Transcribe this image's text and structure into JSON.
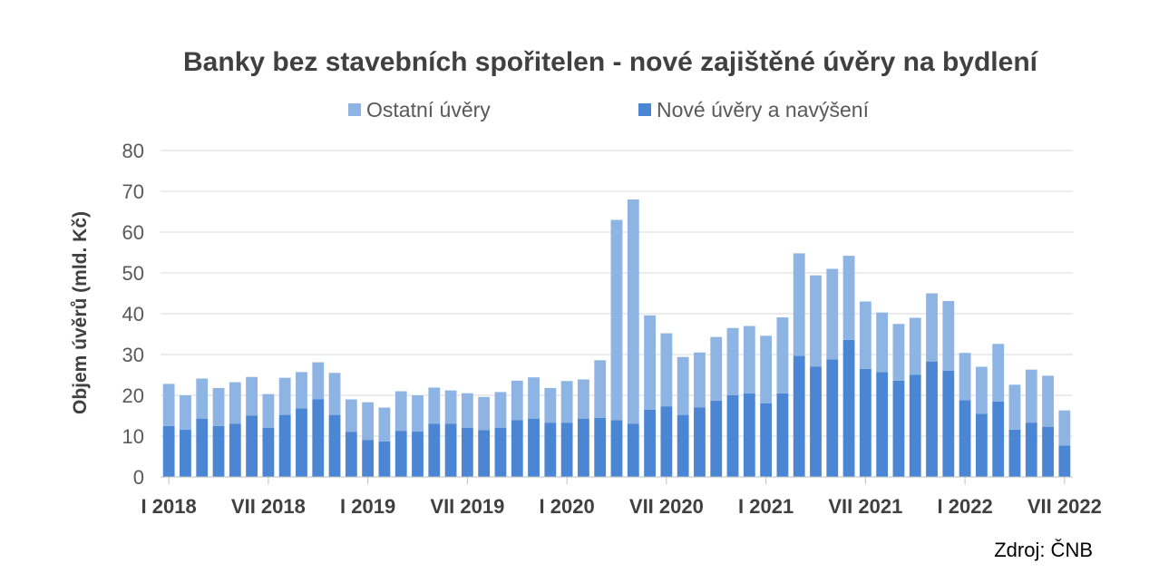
{
  "colors": {
    "ostatni": "#8eb4e3",
    "nove": "#4a86d3"
  },
  "source_label": "Zdroj: ČNB",
  "chart_data": {
    "type": "bar",
    "stacked": true,
    "title": "Banky bez stavebních spořitelen - nové zajištěné úvěry na bydlení",
    "ylabel": "Objem úvěrů (mld. Kč)",
    "xlabel": "",
    "ylim": [
      0,
      80
    ],
    "yticks": [
      0,
      10,
      20,
      30,
      40,
      50,
      60,
      70,
      80
    ],
    "grid": true,
    "legend_position": "top",
    "xtick_labels": [
      {
        "index": 0,
        "label": "I 2018"
      },
      {
        "index": 6,
        "label": "VII 2018"
      },
      {
        "index": 12,
        "label": "I 2019"
      },
      {
        "index": 18,
        "label": "VII 2019"
      },
      {
        "index": 24,
        "label": "I 2020"
      },
      {
        "index": 30,
        "label": "VII 2020"
      },
      {
        "index": 36,
        "label": "I 2021"
      },
      {
        "index": 42,
        "label": "VII 2021"
      },
      {
        "index": 48,
        "label": "I 2022"
      },
      {
        "index": 54,
        "label": "VII 2022"
      }
    ],
    "series": [
      {
        "name": "Nové úvěry a navýšení",
        "color_key": "nove",
        "values": [
          12.5,
          11.6,
          14.3,
          12.5,
          13.0,
          15.0,
          12.0,
          15.2,
          16.8,
          19.0,
          15.2,
          11.0,
          9.0,
          8.7,
          11.3,
          11.1,
          13.0,
          13.0,
          12.0,
          11.5,
          12.0,
          13.9,
          14.3,
          13.3,
          13.3,
          14.3,
          14.5,
          13.9,
          13.0,
          16.5,
          17.3,
          15.2,
          17.0,
          18.7,
          20.0,
          20.5,
          18.0,
          20.5,
          29.7,
          27.0,
          28.8,
          33.6,
          26.5,
          25.7,
          23.6,
          25.0,
          28.3,
          26.0,
          18.8,
          15.5,
          18.5,
          11.6,
          13.3,
          12.3,
          7.7
        ]
      },
      {
        "name": "Ostatní úvěry",
        "color_key": "ostatni",
        "values": [
          10.3,
          8.4,
          9.8,
          9.3,
          10.2,
          9.5,
          8.3,
          9.1,
          8.9,
          9.1,
          10.3,
          8.0,
          9.3,
          8.3,
          9.7,
          8.9,
          8.9,
          8.2,
          8.5,
          8.1,
          8.8,
          9.7,
          10.1,
          8.5,
          10.2,
          9.6,
          14.1,
          49.1,
          55.0,
          23.1,
          17.9,
          14.2,
          13.5,
          15.6,
          16.5,
          16.5,
          16.6,
          18.6,
          25.1,
          22.4,
          22.2,
          20.6,
          16.5,
          14.6,
          13.9,
          14.0,
          16.7,
          17.1,
          11.6,
          11.5,
          14.1,
          11.0,
          13.0,
          12.5,
          8.6
        ]
      }
    ]
  }
}
